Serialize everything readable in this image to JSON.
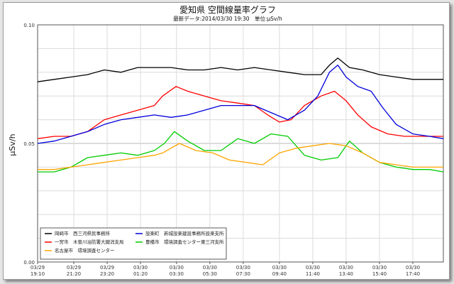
{
  "chart_data": {
    "type": "line",
    "title": "愛知県 空間線量率グラフ",
    "subtitle": "最新データ:2014/03/30 19:30　単位:μSv/h",
    "ylabel": "μSv/h",
    "xlabel": "",
    "ylim": [
      0,
      0.1
    ],
    "yticks": [
      "0.00",
      "0.05",
      "0.10"
    ],
    "grid": true,
    "legend_position": "bottom-left",
    "x_range": [
      "03/29 19:10",
      "03/30 19:30"
    ],
    "x_tick_labels": [
      [
        "03/29",
        "19:10"
      ],
      [
        "03/29",
        "21:20"
      ],
      [
        "03/29",
        "23:20"
      ],
      [
        "03/30",
        "01:20"
      ],
      [
        "03/30",
        "03:30"
      ],
      [
        "03/30",
        "05:30"
      ],
      [
        "03/30",
        "07:30"
      ],
      [
        "03/30",
        "09:40"
      ],
      [
        "03/30",
        "11:40"
      ],
      [
        "03/30",
        "13:40"
      ],
      [
        "03/30",
        "15:40"
      ],
      [
        "03/30",
        "17:40"
      ]
    ],
    "x_tick_hours": [
      0,
      2.17,
      4.17,
      6.17,
      8.33,
      10.33,
      12.33,
      14.5,
      16.5,
      18.5,
      20.5,
      22.5
    ],
    "x_max_hours": 24.33,
    "series": [
      {
        "name": "岡崎市　西三河県民事務所",
        "color": "#000000",
        "points": [
          [
            0,
            0.076
          ],
          [
            1,
            0.077
          ],
          [
            2,
            0.078
          ],
          [
            3,
            0.079
          ],
          [
            4,
            0.081
          ],
          [
            5,
            0.08
          ],
          [
            6,
            0.082
          ],
          [
            7,
            0.082
          ],
          [
            8,
            0.082
          ],
          [
            9,
            0.081
          ],
          [
            10,
            0.081
          ],
          [
            11,
            0.082
          ],
          [
            12,
            0.081
          ],
          [
            13,
            0.082
          ],
          [
            14,
            0.081
          ],
          [
            15,
            0.08
          ],
          [
            16,
            0.079
          ],
          [
            17,
            0.079
          ],
          [
            17.5,
            0.083
          ],
          [
            18,
            0.086
          ],
          [
            18.7,
            0.082
          ],
          [
            19.5,
            0.081
          ],
          [
            20.5,
            0.079
          ],
          [
            21.5,
            0.078
          ],
          [
            22.5,
            0.077
          ],
          [
            23.5,
            0.077
          ],
          [
            24.33,
            0.077
          ]
        ]
      },
      {
        "name": "一宮市　木曽川治防署大鍵消支局",
        "color": "#ff0000",
        "points": [
          [
            0,
            0.052
          ],
          [
            1,
            0.053
          ],
          [
            2,
            0.053
          ],
          [
            3,
            0.055
          ],
          [
            4,
            0.06
          ],
          [
            5,
            0.062
          ],
          [
            6,
            0.064
          ],
          [
            7,
            0.066
          ],
          [
            7.5,
            0.07
          ],
          [
            8.3,
            0.074
          ],
          [
            9,
            0.072
          ],
          [
            10,
            0.07
          ],
          [
            11,
            0.068
          ],
          [
            12,
            0.067
          ],
          [
            13,
            0.066
          ],
          [
            13.8,
            0.062
          ],
          [
            14.5,
            0.059
          ],
          [
            15.2,
            0.06
          ],
          [
            16,
            0.066
          ],
          [
            17,
            0.07
          ],
          [
            17.8,
            0.072
          ],
          [
            18.5,
            0.068
          ],
          [
            19.2,
            0.062
          ],
          [
            20,
            0.057
          ],
          [
            21,
            0.054
          ],
          [
            22,
            0.053
          ],
          [
            23,
            0.053
          ],
          [
            24.33,
            0.053
          ]
        ]
      },
      {
        "name": "設楽町　新城設楽建設事務所設楽支所",
        "color": "#0000dd",
        "points": [
          [
            0,
            0.05
          ],
          [
            1,
            0.051
          ],
          [
            2,
            0.053
          ],
          [
            3,
            0.055
          ],
          [
            4,
            0.058
          ],
          [
            5,
            0.06
          ],
          [
            6,
            0.061
          ],
          [
            7,
            0.062
          ],
          [
            8,
            0.061
          ],
          [
            9,
            0.062
          ],
          [
            10,
            0.064
          ],
          [
            11,
            0.066
          ],
          [
            12,
            0.066
          ],
          [
            13,
            0.066
          ],
          [
            14,
            0.063
          ],
          [
            15,
            0.06
          ],
          [
            16,
            0.064
          ],
          [
            16.8,
            0.07
          ],
          [
            17.5,
            0.08
          ],
          [
            18,
            0.083
          ],
          [
            18.5,
            0.078
          ],
          [
            19.2,
            0.074
          ],
          [
            20,
            0.072
          ],
          [
            20.7,
            0.065
          ],
          [
            21.5,
            0.058
          ],
          [
            22.5,
            0.054
          ],
          [
            23.5,
            0.053
          ],
          [
            24.33,
            0.052
          ]
        ]
      },
      {
        "name": "豊橋市　環境調査センター東三河支所",
        "color": "#00cc00",
        "points": [
          [
            0,
            0.038
          ],
          [
            1,
            0.038
          ],
          [
            2,
            0.04
          ],
          [
            3,
            0.044
          ],
          [
            4,
            0.045
          ],
          [
            5,
            0.046
          ],
          [
            6,
            0.045
          ],
          [
            7,
            0.047
          ],
          [
            7.6,
            0.05
          ],
          [
            8.2,
            0.055
          ],
          [
            9,
            0.051
          ],
          [
            10,
            0.047
          ],
          [
            11,
            0.047
          ],
          [
            12,
            0.052
          ],
          [
            13,
            0.05
          ],
          [
            14,
            0.054
          ],
          [
            15,
            0.053
          ],
          [
            16,
            0.045
          ],
          [
            17,
            0.043
          ],
          [
            18,
            0.044
          ],
          [
            18.7,
            0.051
          ],
          [
            19.5,
            0.046
          ],
          [
            20.5,
            0.042
          ],
          [
            21.5,
            0.04
          ],
          [
            22.5,
            0.039
          ],
          [
            23.5,
            0.039
          ],
          [
            24.33,
            0.038
          ]
        ]
      },
      {
        "name": "名古屋市　環境調査センター",
        "color": "#ffa500",
        "points": [
          [
            0,
            0.039
          ],
          [
            1,
            0.039
          ],
          [
            2,
            0.04
          ],
          [
            3,
            0.041
          ],
          [
            4,
            0.042
          ],
          [
            5,
            0.043
          ],
          [
            6,
            0.044
          ],
          [
            7,
            0.045
          ],
          [
            7.5,
            0.046
          ],
          [
            8.5,
            0.05
          ],
          [
            9.5,
            0.047
          ],
          [
            10.5,
            0.046
          ],
          [
            11.5,
            0.043
          ],
          [
            12.5,
            0.042
          ],
          [
            13.5,
            0.041
          ],
          [
            14.5,
            0.046
          ],
          [
            15.5,
            0.048
          ],
          [
            16.5,
            0.049
          ],
          [
            17.5,
            0.05
          ],
          [
            18.5,
            0.049
          ],
          [
            19.5,
            0.046
          ],
          [
            20.5,
            0.042
          ],
          [
            21.5,
            0.041
          ],
          [
            22.5,
            0.04
          ],
          [
            23.5,
            0.04
          ],
          [
            24.33,
            0.04
          ]
        ]
      }
    ],
    "legend_layout": [
      [
        0,
        2
      ],
      [
        1,
        3
      ],
      [
        4
      ]
    ]
  }
}
